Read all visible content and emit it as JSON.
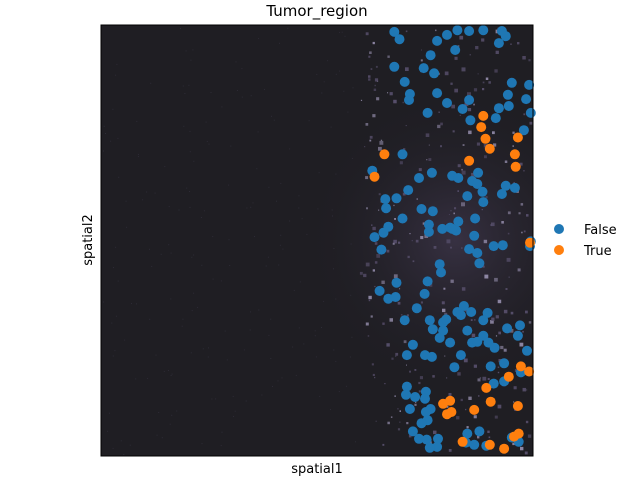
{
  "chart_data": {
    "type": "scatter",
    "title": "Tumor_region",
    "xlabel": "spatial1",
    "ylabel": "spatial2",
    "xlim": [
      0,
      100
    ],
    "ylim": [
      0,
      100
    ],
    "legend_position": "right",
    "background": "dark tissue image",
    "series": [
      {
        "name": "False",
        "color": "#1f77b4",
        "points": [
          [
            67.9,
            98.4
          ],
          [
            69.1,
            96.7
          ],
          [
            77.8,
            96.3
          ],
          [
            80.1,
            97.7
          ],
          [
            82.5,
            98.8
          ],
          [
            85.2,
            98.6
          ],
          [
            88.5,
            98.8
          ],
          [
            92.8,
            98.6
          ],
          [
            93.7,
            97.4
          ],
          [
            92.1,
            95.8
          ],
          [
            82.0,
            94.2
          ],
          [
            76.3,
            93.0
          ],
          [
            74.7,
            90.0
          ],
          [
            77.1,
            88.8
          ],
          [
            67.9,
            90.3
          ],
          [
            70.3,
            86.8
          ],
          [
            71.5,
            84.0
          ],
          [
            71.3,
            82.6
          ],
          [
            77.8,
            84.2
          ],
          [
            80.1,
            81.9
          ],
          [
            75.6,
            79.6
          ],
          [
            85.2,
            82.6
          ],
          [
            83.7,
            80.5
          ],
          [
            85.5,
            77.9
          ],
          [
            91.4,
            78.4
          ],
          [
            92.1,
            80.7
          ],
          [
            95.1,
            86.6
          ],
          [
            94.2,
            83.8
          ],
          [
            94.4,
            81.2
          ],
          [
            99.1,
            86.1
          ],
          [
            98.4,
            82.8
          ],
          [
            99.5,
            79.6
          ],
          [
            97.9,
            75.6
          ],
          [
            69.8,
            70.0
          ],
          [
            62.8,
            66.2
          ],
          [
            73.6,
            64.5
          ],
          [
            76.6,
            65.7
          ],
          [
            81.3,
            65.0
          ],
          [
            82.7,
            64.5
          ],
          [
            87.3,
            65.7
          ],
          [
            85.9,
            63.8
          ],
          [
            87.1,
            63.1
          ],
          [
            84.8,
            60.3
          ],
          [
            88.3,
            61.3
          ],
          [
            93.7,
            62.7
          ],
          [
            92.8,
            60.8
          ],
          [
            95.8,
            62.2
          ],
          [
            88.5,
            58.9
          ],
          [
            86.6,
            55.1
          ],
          [
            82.2,
            52.3
          ],
          [
            76.8,
            56.8
          ],
          [
            74.2,
            57.3
          ],
          [
            71.1,
            61.7
          ],
          [
            68.4,
            59.8
          ],
          [
            65.8,
            59.6
          ],
          [
            66.0,
            57.5
          ],
          [
            69.8,
            55.1
          ],
          [
            66.5,
            53.2
          ],
          [
            65.4,
            51.8
          ],
          [
            63.3,
            50.8
          ],
          [
            64.9,
            47.9
          ],
          [
            75.9,
            53.7
          ],
          [
            75.9,
            52.0
          ],
          [
            79.0,
            52.7
          ],
          [
            80.8,
            53.0
          ],
          [
            82.7,
            54.4
          ],
          [
            81.3,
            52.7
          ],
          [
            85.2,
            48.0
          ],
          [
            87.1,
            47.1
          ],
          [
            86.4,
            51.1
          ],
          [
            90.9,
            48.7
          ],
          [
            93.0,
            48.9
          ],
          [
            99.3,
            48.7
          ],
          [
            99.5,
            49.8
          ],
          [
            87.6,
            44.7
          ],
          [
            78.4,
            44.5
          ],
          [
            78.7,
            42.6
          ],
          [
            75.6,
            40.5
          ],
          [
            68.4,
            40.2
          ],
          [
            64.5,
            38.3
          ],
          [
            66.5,
            36.5
          ],
          [
            74.9,
            37.6
          ],
          [
            68.2,
            36.9
          ],
          [
            73.1,
            34.3
          ],
          [
            70.3,
            31.5
          ],
          [
            76.1,
            31.5
          ],
          [
            79.2,
            31.0
          ],
          [
            79.9,
            31.7
          ],
          [
            76.8,
            29.4
          ],
          [
            79.2,
            29.1
          ],
          [
            84.0,
            34.8
          ],
          [
            82.5,
            33.4
          ],
          [
            85.7,
            33.4
          ],
          [
            83.3,
            32.7
          ],
          [
            89.5,
            33.2
          ],
          [
            88.5,
            31.5
          ],
          [
            84.8,
            29.1
          ],
          [
            85.9,
            26.3
          ],
          [
            87.1,
            26.5
          ],
          [
            88.5,
            27.9
          ],
          [
            89.7,
            26.3
          ],
          [
            91.1,
            25.1
          ],
          [
            94.0,
            29.6
          ],
          [
            96.5,
            27.9
          ],
          [
            97.0,
            30.3
          ],
          [
            98.6,
            24.4
          ],
          [
            97.2,
            19.4
          ],
          [
            83.3,
            23.4
          ],
          [
            80.8,
            26.3
          ],
          [
            78.4,
            27.4
          ],
          [
            72.2,
            25.8
          ],
          [
            70.8,
            23.4
          ],
          [
            75.0,
            23.4
          ],
          [
            76.6,
            23.0
          ],
          [
            81.8,
            20.6
          ],
          [
            90.2,
            20.8
          ],
          [
            93.3,
            21.5
          ],
          [
            90.9,
            16.8
          ],
          [
            93.3,
            17.3
          ],
          [
            70.8,
            16.1
          ],
          [
            70.6,
            14.2
          ],
          [
            72.7,
            13.7
          ],
          [
            75.2,
            14.9
          ],
          [
            75.0,
            13.3
          ],
          [
            76.3,
            10.9
          ],
          [
            71.5,
            10.9
          ],
          [
            75.2,
            10.2
          ],
          [
            75.6,
            8.3
          ],
          [
            74.2,
            7.6
          ],
          [
            72.2,
            5.7
          ],
          [
            73.6,
            4.0
          ],
          [
            75.4,
            3.8
          ],
          [
            78.0,
            4.0
          ],
          [
            77.8,
            2.1
          ],
          [
            76.1,
            1.9
          ],
          [
            84.8,
            5.2
          ],
          [
            87.6,
            5.7
          ],
          [
            84.5,
            3.1
          ],
          [
            86.4,
            2.6
          ],
          [
            89.2,
            2.4
          ],
          [
            95.1,
            4.3
          ],
          [
            96.7,
            3.3
          ]
        ]
      },
      {
        "name": "True",
        "color": "#ff7f0e",
        "points": [
          [
            88.5,
            78.9
          ],
          [
            88.0,
            76.3
          ],
          [
            90.0,
            71.3
          ],
          [
            89.0,
            73.6
          ],
          [
            96.5,
            73.9
          ],
          [
            95.8,
            70.0
          ],
          [
            96.0,
            67.1
          ],
          [
            85.2,
            68.5
          ],
          [
            65.6,
            70.0
          ],
          [
            63.3,
            64.8
          ],
          [
            99.3,
            49.5
          ],
          [
            89.2,
            15.8
          ],
          [
            97.2,
            20.8
          ],
          [
            94.4,
            18.4
          ],
          [
            90.2,
            12.6
          ],
          [
            96.5,
            11.6
          ],
          [
            99.1,
            19.6
          ],
          [
            80.8,
            12.8
          ],
          [
            79.2,
            12.1
          ],
          [
            81.1,
            10.2
          ],
          [
            80.1,
            9.7
          ],
          [
            86.4,
            10.7
          ],
          [
            83.7,
            3.3
          ],
          [
            90.0,
            2.6
          ],
          [
            93.3,
            1.7
          ],
          [
            95.6,
            4.5
          ],
          [
            96.7,
            5.2
          ]
        ]
      }
    ]
  }
}
